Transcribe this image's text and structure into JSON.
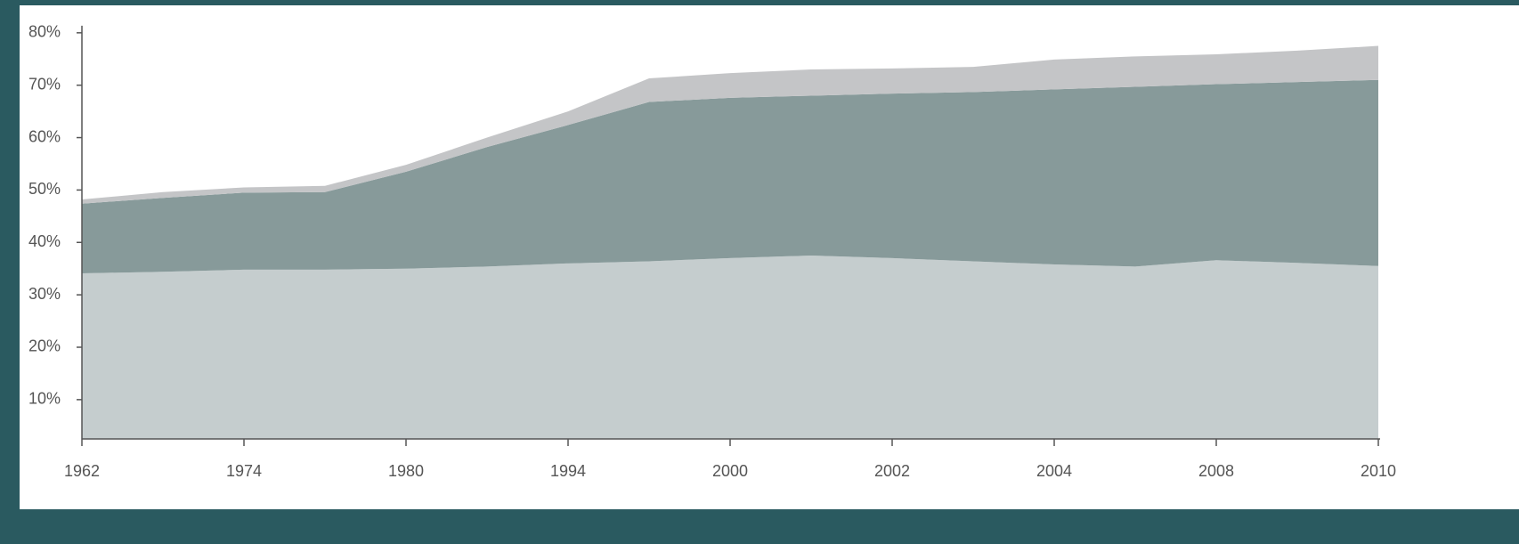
{
  "chart_data": {
    "type": "stacked-area",
    "categories": [
      "1962",
      null,
      "1974",
      null,
      "1980",
      null,
      "1994",
      null,
      "2000",
      null,
      "2002",
      null,
      "2004",
      null,
      "2008",
      null,
      "2010"
    ],
    "series": [
      {
        "color": "#c5cdce",
        "values": [
          34.1,
          34.4,
          34.8,
          34.8,
          35.0,
          35.4,
          36.0,
          36.4,
          37.0,
          37.5,
          37.0,
          36.4,
          35.8,
          35.4,
          36.6,
          36.1,
          35.5
        ]
      },
      {
        "color": "#879a9a",
        "values": [
          13.3,
          14.1,
          14.7,
          14.8,
          18.5,
          22.8,
          26.4,
          30.4,
          30.6,
          30.5,
          31.4,
          32.3,
          33.4,
          34.3,
          33.6,
          34.5,
          35.5
        ]
      },
      {
        "color": "#c4c5c7",
        "values": [
          0.8,
          1.1,
          1.0,
          1.2,
          1.3,
          1.8,
          2.6,
          4.5,
          4.7,
          5.0,
          4.8,
          4.8,
          5.7,
          5.8,
          5.7,
          6.0,
          6.5
        ]
      }
    ],
    "ylim": [
      2.5,
      80
    ],
    "yticks": [
      {
        "value": 10,
        "label": "10%"
      },
      {
        "value": 20,
        "label": "20%"
      },
      {
        "value": 30,
        "label": "30%"
      },
      {
        "value": 40,
        "label": "40%"
      },
      {
        "value": 50,
        "label": "50%"
      },
      {
        "value": 60,
        "label": "60%"
      },
      {
        "value": 70,
        "label": "70%"
      },
      {
        "value": 80,
        "label": "80%"
      }
    ],
    "grid": false
  }
}
